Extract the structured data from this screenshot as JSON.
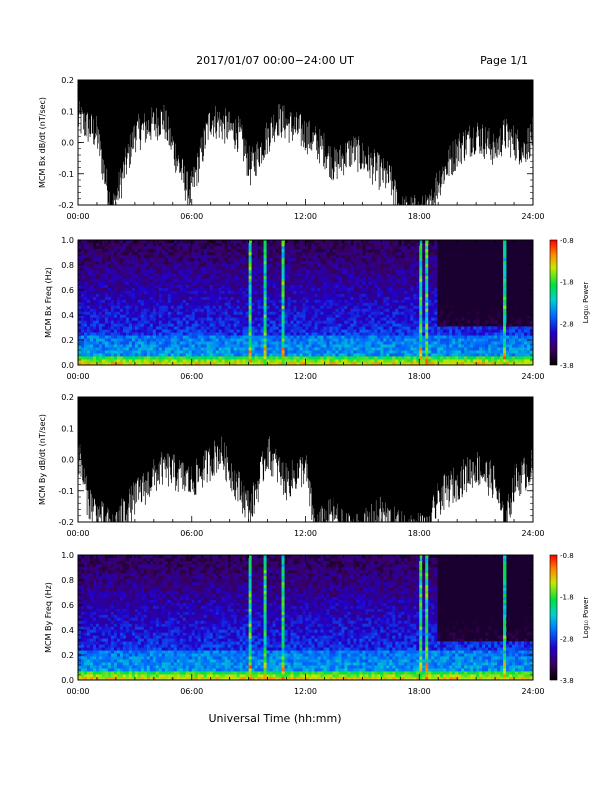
{
  "header": {
    "title": "2017/01/07  00:00−24:00 UT",
    "page": "Page 1/1"
  },
  "footer": {
    "xlabel": "Universal Time (hh:mm)"
  },
  "chart_data": [
    {
      "type": "line",
      "ylabel": "MCM Bx dB/dt (nT/sec)",
      "xlabel": "",
      "x_range_hours": [
        0,
        24
      ],
      "xticks": [
        "00:00",
        "06:00",
        "12:00",
        "18:00",
        "24:00"
      ],
      "ylim": [
        -0.2,
        0.2
      ],
      "yticks": [
        "-0.2",
        "-0.1",
        "0.0",
        "0.1",
        "0.2"
      ],
      "series": [
        {
          "x": [
            0,
            1,
            1.8,
            3,
            4.5,
            5.9,
            7,
            8.5,
            9.1,
            10.5,
            12,
            13,
            13.5,
            14.5,
            15.5,
            16.5,
            17,
            17.5,
            18,
            18.5,
            19,
            20,
            21,
            22,
            22.5,
            23.5,
            24
          ],
          "y": [
            0.1,
            0.05,
            -0.2,
            0.05,
            0.1,
            -0.15,
            0.1,
            0.05,
            -0.06,
            0.1,
            0.05,
            0.0,
            -0.05,
            0.0,
            -0.05,
            -0.1,
            -0.2,
            -0.2,
            -0.2,
            -0.2,
            -0.1,
            0.0,
            0.05,
            0.0,
            0.05,
            0.0,
            0.05
          ]
        }
      ]
    },
    {
      "type": "heatmap",
      "ylabel": "MCM Bx Freq (Hz)",
      "xlabel": "",
      "x_range_hours": [
        0,
        24
      ],
      "xticks": [
        "00:00",
        "06:00",
        "12:00",
        "18:00",
        "24:00"
      ],
      "ylim": [
        0,
        1.0
      ],
      "yticks": [
        "0.0",
        "0.2",
        "0.4",
        "0.6",
        "0.8",
        "1.0"
      ],
      "colorbar": {
        "label": "Log₁₀ Power",
        "range": [
          -3.8,
          -0.8
        ],
        "ticks": [
          "-0.8",
          "-1.8",
          "-2.8",
          "-3.8"
        ]
      },
      "bright_hours": [
        9.1,
        9.9,
        10.8,
        18.1,
        18.4,
        22.5
      ]
    },
    {
      "type": "line",
      "ylabel": "MCM By dB/dt (nT/sec)",
      "xlabel": "",
      "x_range_hours": [
        0,
        24
      ],
      "xticks": [
        "00:00",
        "06:00",
        "12:00",
        "18:00",
        "24:00"
      ],
      "ylim": [
        -0.2,
        0.2
      ],
      "yticks": [
        "-0.2",
        "-0.1",
        "0.0",
        "0.1",
        "0.2"
      ],
      "series": [
        {
          "x": [
            0,
            0.5,
            1,
            1.8,
            3,
            4.5,
            6,
            7.5,
            9.1,
            10,
            11,
            12,
            12.5,
            13.5,
            14,
            15,
            16,
            17,
            18,
            18.5,
            19,
            20,
            21,
            22,
            22.5,
            23,
            24
          ],
          "y": [
            0.05,
            -0.1,
            -0.15,
            -0.2,
            -0.1,
            0.0,
            -0.05,
            0.05,
            -0.14,
            0.05,
            -0.05,
            0.0,
            -0.2,
            -0.15,
            -0.2,
            -0.2,
            -0.15,
            -0.2,
            -0.2,
            -0.2,
            -0.1,
            -0.05,
            0.0,
            -0.05,
            -0.2,
            -0.05,
            0.0
          ]
        }
      ]
    },
    {
      "type": "heatmap",
      "ylabel": "MCM By Freq (Hz)",
      "xlabel": "",
      "x_range_hours": [
        0,
        24
      ],
      "xticks": [
        "00:00",
        "06:00",
        "12:00",
        "18:00",
        "24:00"
      ],
      "ylim": [
        0,
        1.0
      ],
      "yticks": [
        "0.0",
        "0.2",
        "0.4",
        "0.6",
        "0.8",
        "1.0"
      ],
      "colorbar": {
        "label": "Log₁₀ Power",
        "range": [
          -3.8,
          -0.8
        ],
        "ticks": [
          "-0.8",
          "-1.8",
          "-2.8",
          "-3.8"
        ]
      },
      "bright_hours": [
        9.1,
        9.9,
        10.8,
        18.1,
        18.4,
        22.5
      ]
    }
  ]
}
